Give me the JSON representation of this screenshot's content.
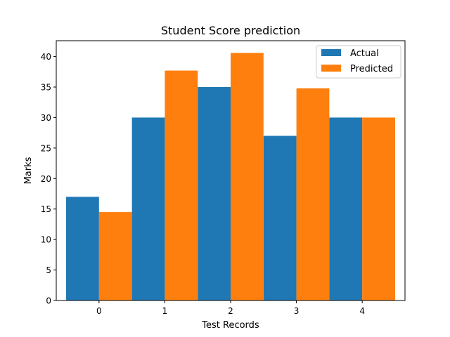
{
  "chart_data": {
    "type": "bar",
    "title": "Student Score prediction",
    "xlabel": "Test Records",
    "ylabel": "Marks",
    "categories": [
      "0",
      "1",
      "2",
      "3",
      "4"
    ],
    "series": [
      {
        "name": "Actual",
        "color": "#1f77b4",
        "values": [
          17,
          30,
          35,
          27,
          30
        ]
      },
      {
        "name": "Predicted",
        "color": "#ff7f0e",
        "values": [
          14.5,
          37.7,
          40.6,
          34.8,
          30.0
        ]
      }
    ],
    "ylim": [
      0,
      42.6
    ],
    "yticks": [
      0,
      5,
      10,
      15,
      20,
      25,
      30,
      35,
      40
    ],
    "grid": false,
    "legend_position": "top-right"
  }
}
